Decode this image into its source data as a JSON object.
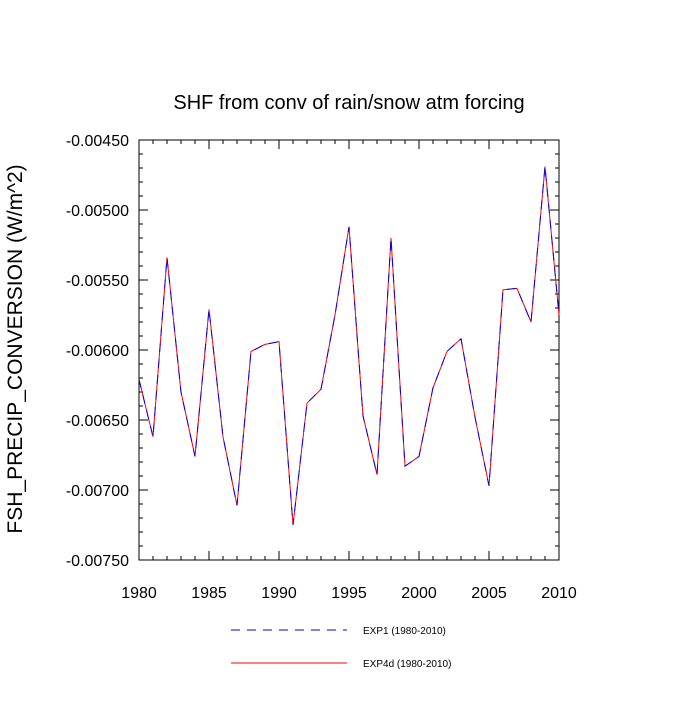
{
  "chart_data": {
    "type": "line",
    "title": "SHF from conv of rain/snow atm forcing",
    "xlabel": "",
    "ylabel": "FSH_PRECIP_CONVERSION  (W/m^2)",
    "xlim": [
      1980,
      2010
    ],
    "ylim": [
      -0.0075,
      -0.0045
    ],
    "x_ticks": [
      1980,
      1985,
      1990,
      1995,
      2000,
      2005,
      2010
    ],
    "x_tick_labels": [
      "1980",
      "1985",
      "1990",
      "1995",
      "2000",
      "2005",
      "2010"
    ],
    "y_ticks": [
      -0.0045,
      -0.005,
      -0.0055,
      -0.006,
      -0.0065,
      -0.007,
      -0.0075
    ],
    "y_tick_labels": [
      "-0.00450",
      "-0.00500",
      "-0.00550",
      "-0.00600",
      "-0.00650",
      "-0.00700",
      "-0.00750"
    ],
    "grid": false,
    "legend_position": "bottom-center",
    "x": [
      1980,
      1981,
      1982,
      1983,
      1984,
      1985,
      1986,
      1987,
      1988,
      1989,
      1990,
      1991,
      1992,
      1993,
      1994,
      1995,
      1996,
      1997,
      1998,
      1999,
      2000,
      2001,
      2002,
      2003,
      2004,
      2005,
      2006,
      2007,
      2008,
      2009,
      2010
    ],
    "series": [
      {
        "name": "EXP1 (1980-2010)",
        "color": "#0000ff",
        "style": "dashed",
        "values": [
          -0.00621,
          -0.00662,
          -0.00534,
          -0.0063,
          -0.00676,
          -0.00571,
          -0.00662,
          -0.00711,
          -0.00601,
          -0.00596,
          -0.00594,
          -0.00725,
          -0.00638,
          -0.00628,
          -0.00575,
          -0.00512,
          -0.00647,
          -0.00689,
          -0.0052,
          -0.00683,
          -0.00676,
          -0.00627,
          -0.00601,
          -0.00592,
          -0.00648,
          -0.00697,
          -0.00557,
          -0.00556,
          -0.0058,
          -0.00469,
          -0.00575
        ]
      },
      {
        "name": "EXP4d (1980-2010)",
        "color": "#ff0000",
        "style": "solid",
        "values": [
          -0.00621,
          -0.00662,
          -0.00534,
          -0.0063,
          -0.00676,
          -0.00571,
          -0.00662,
          -0.00711,
          -0.00601,
          -0.00596,
          -0.00594,
          -0.00725,
          -0.00638,
          -0.00628,
          -0.00575,
          -0.00512,
          -0.00647,
          -0.00689,
          -0.0052,
          -0.00683,
          -0.00676,
          -0.00627,
          -0.00601,
          -0.00592,
          -0.00648,
          -0.00697,
          -0.00557,
          -0.00556,
          -0.0058,
          -0.00469,
          -0.00575
        ]
      }
    ]
  }
}
